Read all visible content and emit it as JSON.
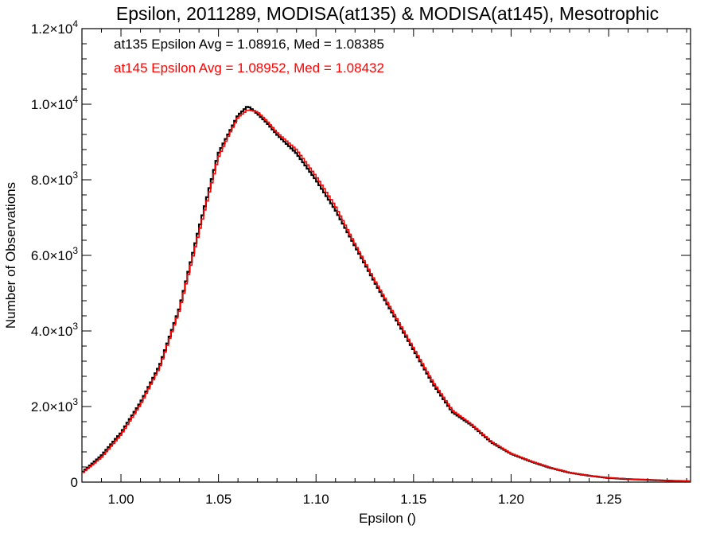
{
  "chart_data": {
    "type": "line",
    "title": "Epsilon, 2011289, MODISA(at135) & MODISA(at145), Mesotrophic",
    "xlabel": "Epsilon ()",
    "ylabel": "Number of Observations",
    "xlim": [
      0.98,
      1.292
    ],
    "ylim": [
      0,
      12000
    ],
    "grid": false,
    "x_ticks": [
      {
        "value": 1.0,
        "label": "1.00"
      },
      {
        "value": 1.05,
        "label": "1.05"
      },
      {
        "value": 1.1,
        "label": "1.10"
      },
      {
        "value": 1.15,
        "label": "1.15"
      },
      {
        "value": 1.2,
        "label": "1.20"
      },
      {
        "value": 1.25,
        "label": "1.25"
      }
    ],
    "y_ticks": [
      {
        "value": 0,
        "mantissa": "0",
        "exp": ""
      },
      {
        "value": 2000,
        "mantissa": "2.0×10",
        "exp": "3"
      },
      {
        "value": 4000,
        "mantissa": "4.0×10",
        "exp": "3"
      },
      {
        "value": 6000,
        "mantissa": "6.0×10",
        "exp": "3"
      },
      {
        "value": 8000,
        "mantissa": "8.0×10",
        "exp": "3"
      },
      {
        "value": 10000,
        "mantissa": "1.0×10",
        "exp": "4"
      },
      {
        "value": 12000,
        "mantissa": "1.2×10",
        "exp": "4"
      }
    ],
    "annotations": [
      {
        "text": "at135 Epsilon Avg = 1.08916, Med = 1.08385",
        "color": "#000000"
      },
      {
        "text": "at145 Epsilon Avg = 1.08952, Med = 1.08432",
        "color": "#ff0000"
      }
    ],
    "series": [
      {
        "color": "#000000",
        "x": [
          0.98,
          0.99,
          1.0,
          1.01,
          1.02,
          1.03,
          1.04,
          1.05,
          1.055,
          1.06,
          1.065,
          1.07,
          1.075,
          1.08,
          1.09,
          1.1,
          1.11,
          1.12,
          1.13,
          1.14,
          1.15,
          1.16,
          1.17,
          1.18,
          1.19,
          1.2,
          1.21,
          1.22,
          1.23,
          1.24,
          1.25,
          1.26,
          1.27,
          1.28,
          1.292
        ],
        "y": [
          250,
          700,
          1300,
          2100,
          3100,
          4600,
          6700,
          8700,
          9200,
          9700,
          9950,
          9750,
          9500,
          9200,
          8700,
          8000,
          7200,
          6250,
          5300,
          4400,
          3500,
          2600,
          1850,
          1500,
          1050,
          750,
          550,
          380,
          250,
          170,
          110,
          80,
          60,
          40,
          20
        ]
      },
      {
        "color": "#ff0000",
        "x": [
          0.98,
          0.99,
          1.0,
          1.01,
          1.02,
          1.03,
          1.04,
          1.05,
          1.055,
          1.06,
          1.065,
          1.07,
          1.075,
          1.08,
          1.09,
          1.1,
          1.11,
          1.12,
          1.13,
          1.14,
          1.15,
          1.16,
          1.17,
          1.18,
          1.19,
          1.2,
          1.21,
          1.22,
          1.23,
          1.24,
          1.25,
          1.26,
          1.27,
          1.28,
          1.292
        ],
        "y": [
          230,
          650,
          1250,
          2050,
          3050,
          4550,
          6600,
          8600,
          9150,
          9650,
          9850,
          9800,
          9550,
          9250,
          8800,
          8100,
          7300,
          6300,
          5350,
          4450,
          3550,
          2650,
          1900,
          1520,
          1070,
          760,
          560,
          390,
          255,
          175,
          115,
          85,
          62,
          42,
          22
        ]
      }
    ]
  }
}
